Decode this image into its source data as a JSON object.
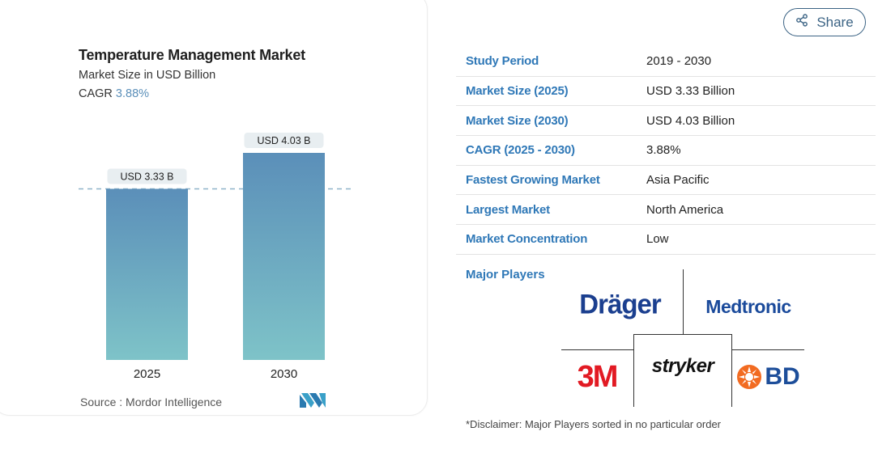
{
  "share": {
    "label": "Share",
    "icon": "share-icon"
  },
  "chart_data": {
    "type": "bar",
    "title": "Temperature Management Market",
    "subtitle": "Market Size in USD Billion",
    "cagr_label": "CAGR",
    "cagr_value": "3.88%",
    "categories": [
      "2025",
      "2030"
    ],
    "values": [
      3.33,
      4.03
    ],
    "value_labels": [
      "USD 3.33 B",
      "USD 4.03 B"
    ],
    "ylim": [
      0,
      4.03
    ],
    "grid": false,
    "reference_line": 3.33,
    "colors": {
      "bar_top": "#5b8fb9",
      "bar_bottom": "#7ec3c8",
      "label_bg": "#e8eef1",
      "dash": "#8fb3c9"
    },
    "source": "Source : Mordor Intelligence"
  },
  "stats": [
    {
      "label": "Study Period",
      "value": "2019 - 2030"
    },
    {
      "label": "Market Size (2025)",
      "value": "USD 3.33 Billion"
    },
    {
      "label": "Market Size (2030)",
      "value": "USD 4.03 Billion"
    },
    {
      "label": "CAGR (2025 - 2030)",
      "value": "3.88%"
    },
    {
      "label": "Fastest Growing Market",
      "value": "Asia Pacific"
    },
    {
      "label": "Largest Market",
      "value": "North America"
    },
    {
      "label": "Market Concentration",
      "value": "Low"
    }
  ],
  "major_players": {
    "label": "Major Players",
    "logos": [
      "Dräger",
      "Medtronic",
      "3M",
      "stryker",
      "BD"
    ]
  },
  "disclaimer": "*Disclaimer: Major Players sorted in no particular order",
  "colors": {
    "accent": "#2f78b7",
    "share_border": "#3b6384"
  }
}
